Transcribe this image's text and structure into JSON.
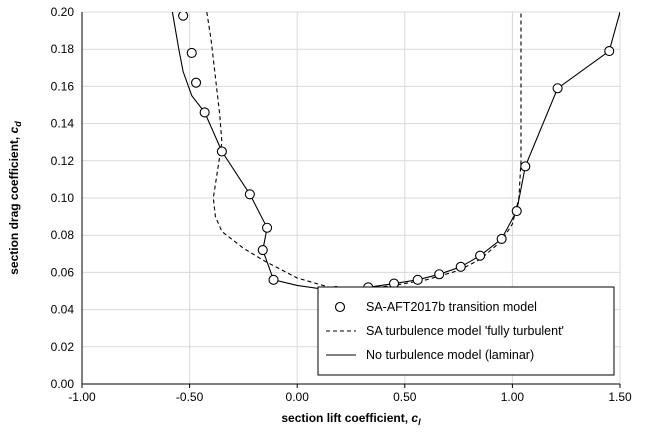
{
  "chart_data": {
    "type": "line",
    "title": "",
    "xlabel": "section lift coefficient, ",
    "xlabel_sub": "l",
    "ylabel": "section drag coefficient, ",
    "ylabel_sub": "d",
    "xlabel_var": "c",
    "ylabel_var": "c",
    "xlim": [
      -1.0,
      1.5
    ],
    "ylim": [
      0.0,
      0.2
    ],
    "xticks": [
      "-1.00",
      "-0.50",
      "0.00",
      "0.50",
      "1.00",
      "1.50"
    ],
    "yticks": [
      "0.00",
      "0.02",
      "0.04",
      "0.06",
      "0.08",
      "0.10",
      "0.12",
      "0.14",
      "0.16",
      "0.18",
      "0.20"
    ],
    "grid": true,
    "legend_position": "bottom-right",
    "series": [
      {
        "name": "SA-AFT2017b transition model",
        "style": "markers",
        "points": [
          [
            -0.53,
            0.198
          ],
          [
            -0.49,
            0.178
          ],
          [
            -0.47,
            0.162
          ],
          [
            -0.43,
            0.146
          ],
          [
            -0.35,
            0.125
          ],
          [
            -0.22,
            0.102
          ],
          [
            -0.14,
            0.084
          ],
          [
            -0.16,
            0.072
          ],
          [
            -0.11,
            0.056
          ],
          [
            0.18,
            0.05
          ],
          [
            0.33,
            0.052
          ],
          [
            0.45,
            0.054
          ],
          [
            0.56,
            0.056
          ],
          [
            0.66,
            0.059
          ],
          [
            0.76,
            0.063
          ],
          [
            0.85,
            0.069
          ],
          [
            0.95,
            0.078
          ],
          [
            1.02,
            0.093
          ],
          [
            1.06,
            0.117
          ],
          [
            1.21,
            0.159
          ],
          [
            1.45,
            0.179
          ]
        ]
      },
      {
        "name": "SA turbulence model 'fully turbulent'",
        "style": "dashed",
        "points": [
          [
            -0.42,
            0.2
          ],
          [
            -0.4,
            0.185
          ],
          [
            -0.38,
            0.165
          ],
          [
            -0.36,
            0.145
          ],
          [
            -0.35,
            0.13
          ],
          [
            -0.37,
            0.115
          ],
          [
            -0.39,
            0.1
          ],
          [
            -0.38,
            0.09
          ],
          [
            -0.35,
            0.082
          ],
          [
            -0.25,
            0.073
          ],
          [
            -0.15,
            0.066
          ],
          [
            0.0,
            0.057
          ],
          [
            0.15,
            0.052
          ],
          [
            0.3,
            0.051
          ],
          [
            0.45,
            0.053
          ],
          [
            0.6,
            0.056
          ],
          [
            0.75,
            0.061
          ],
          [
            0.85,
            0.067
          ],
          [
            0.95,
            0.077
          ],
          [
            1.0,
            0.086
          ],
          [
            1.03,
            0.1
          ],
          [
            1.04,
            0.12
          ],
          [
            1.04,
            0.16
          ],
          [
            1.04,
            0.2
          ]
        ]
      },
      {
        "name": "No turbulence model (laminar)",
        "style": "solid",
        "points": [
          [
            -0.58,
            0.2
          ],
          [
            -0.55,
            0.18
          ],
          [
            -0.53,
            0.168
          ],
          [
            -0.49,
            0.155
          ],
          [
            -0.43,
            0.146
          ],
          [
            -0.35,
            0.125
          ],
          [
            -0.22,
            0.102
          ],
          [
            -0.14,
            0.084
          ],
          [
            -0.16,
            0.072
          ],
          [
            -0.11,
            0.056
          ],
          [
            0.0,
            0.053
          ],
          [
            0.18,
            0.05
          ],
          [
            0.33,
            0.052
          ],
          [
            0.45,
            0.054
          ],
          [
            0.56,
            0.056
          ],
          [
            0.66,
            0.059
          ],
          [
            0.76,
            0.063
          ],
          [
            0.85,
            0.069
          ],
          [
            0.95,
            0.078
          ],
          [
            1.02,
            0.093
          ],
          [
            1.06,
            0.117
          ],
          [
            1.21,
            0.159
          ],
          [
            1.45,
            0.179
          ],
          [
            1.5,
            0.2
          ]
        ]
      }
    ]
  }
}
